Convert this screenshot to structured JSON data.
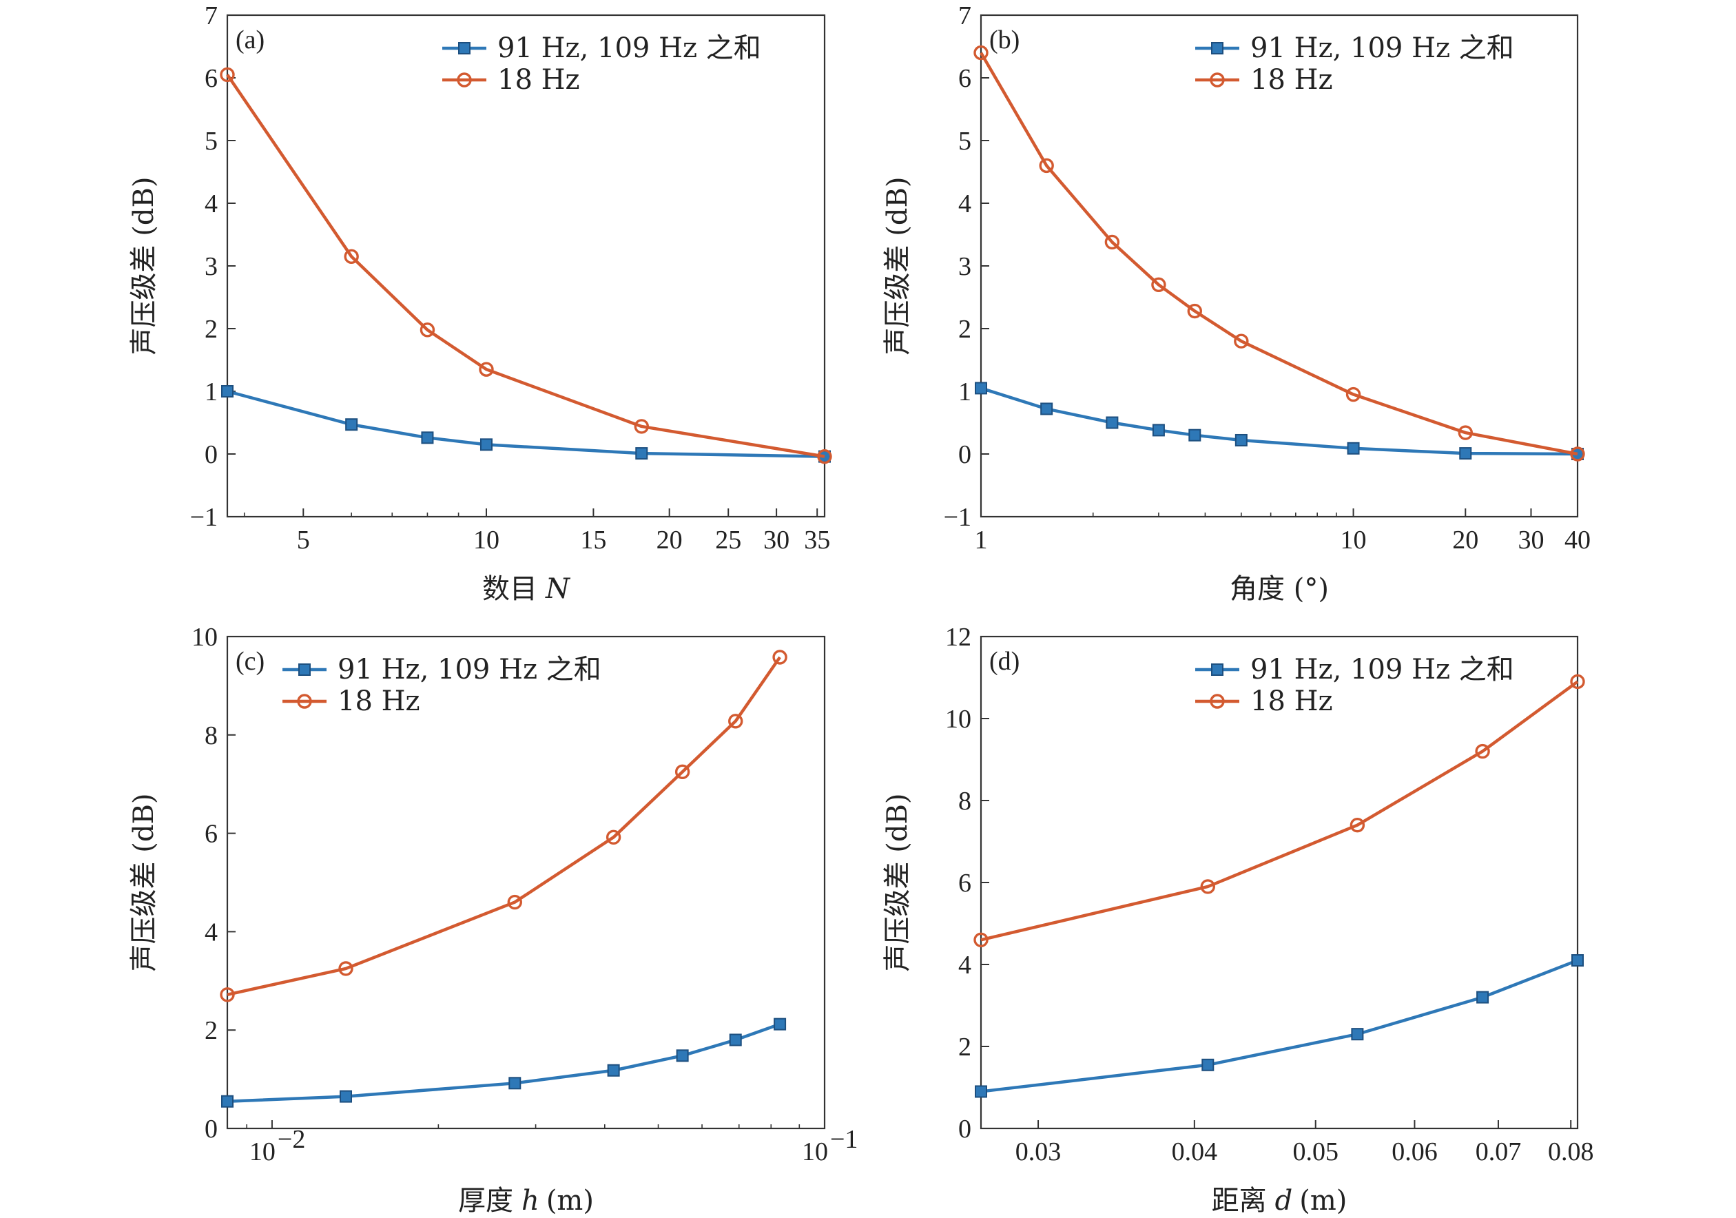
{
  "colors": {
    "series_a": "#2e78b7",
    "series_b": "#d35a30",
    "axis": "#333333"
  },
  "chart_data": [
    {
      "tag": "(a)",
      "type": "line",
      "xscale": "log",
      "xlabel": "数目",
      "xlabel_var": "N",
      "ylabel": "声压级差 (dB)",
      "xlim": [
        3.75,
        36
      ],
      "ylim": [
        -1,
        7
      ],
      "xticks": [
        5,
        10,
        15,
        20,
        25,
        30,
        35
      ],
      "xtick_labels": [
        "5",
        "10",
        "15",
        "20",
        "25",
        "30",
        "35"
      ],
      "yticks": [
        -1,
        0,
        1,
        2,
        3,
        4,
        5,
        6,
        7
      ],
      "ytick_labels": [
        "−1",
        "0",
        "1",
        "2",
        "3",
        "4",
        "5",
        "6",
        "7"
      ],
      "legend": "top-right",
      "series": [
        {
          "name": "91 Hz, 109 Hz 之和",
          "marker": "square",
          "x": [
            3.75,
            6,
            8,
            10,
            18,
            36
          ],
          "y": [
            1.0,
            0.47,
            0.26,
            0.15,
            0.01,
            -0.04
          ]
        },
        {
          "name": "18 Hz",
          "marker": "circle",
          "x": [
            3.75,
            6,
            8,
            10,
            18,
            36
          ],
          "y": [
            6.05,
            3.15,
            1.98,
            1.35,
            0.44,
            -0.04
          ]
        }
      ]
    },
    {
      "tag": "(b)",
      "type": "line",
      "xscale": "log",
      "xlabel": "角度 (°)",
      "xlabel_var": "",
      "ylabel": "声压级差 (dB)",
      "xlim": [
        1,
        40
      ],
      "ylim": [
        -1,
        7
      ],
      "xticks": [
        1,
        10,
        20,
        30,
        40
      ],
      "xtick_labels": [
        "1",
        "10",
        "20",
        "30",
        "40"
      ],
      "yticks": [
        -1,
        0,
        1,
        2,
        3,
        4,
        5,
        6,
        7
      ],
      "ytick_labels": [
        "−1",
        "0",
        "1",
        "2",
        "3",
        "4",
        "5",
        "6",
        "7"
      ],
      "legend": "top-right",
      "series": [
        {
          "name": "91 Hz, 109 Hz 之和",
          "marker": "square",
          "x": [
            1,
            1.5,
            2.25,
            3,
            3.75,
            5,
            10,
            20,
            40
          ],
          "y": [
            1.05,
            0.72,
            0.5,
            0.38,
            0.3,
            0.22,
            0.09,
            0.01,
            0.0
          ]
        },
        {
          "name": "18 Hz",
          "marker": "circle",
          "x": [
            1,
            1.5,
            2.25,
            3,
            3.75,
            5,
            10,
            20,
            40
          ],
          "y": [
            6.4,
            4.6,
            3.38,
            2.7,
            2.28,
            1.8,
            0.95,
            0.34,
            0.0
          ]
        }
      ]
    },
    {
      "tag": "(c)",
      "type": "line",
      "xscale": "log",
      "xlabel": "厚度",
      "xlabel_var": "h",
      "xlabel_unit": "(m)",
      "ylabel": "声压级差 (dB)",
      "xlim": [
        0.0083,
        0.1
      ],
      "ylim": [
        0,
        10
      ],
      "xticks": [
        0.01,
        0.1
      ],
      "xtick_labels": [
        "10",
        "10"
      ],
      "xtick_exponents": [
        "−2",
        "−1"
      ],
      "yticks": [
        0,
        2,
        4,
        6,
        8,
        10
      ],
      "ytick_labels": [
        "0",
        "2",
        "4",
        "6",
        "8",
        "10"
      ],
      "legend": "top-left",
      "series": [
        {
          "name": "91 Hz, 109 Hz 之和",
          "marker": "square",
          "x": [
            0.0083,
            0.0136,
            0.0275,
            0.0415,
            0.0553,
            0.069,
            0.083
          ],
          "y": [
            0.55,
            0.65,
            0.92,
            1.18,
            1.48,
            1.8,
            2.12
          ]
        },
        {
          "name": "18 Hz",
          "marker": "circle",
          "x": [
            0.0083,
            0.0136,
            0.0275,
            0.0415,
            0.0553,
            0.069,
            0.083
          ],
          "y": [
            2.72,
            3.25,
            4.6,
            5.92,
            7.25,
            8.28,
            9.58
          ]
        }
      ]
    },
    {
      "tag": "(d)",
      "type": "line",
      "xscale": "log",
      "xlabel": "距离",
      "xlabel_var": "d",
      "xlabel_unit": "(m)",
      "ylabel": "声压级差 (dB)",
      "xlim": [
        0.027,
        0.081
      ],
      "ylim": [
        0,
        12
      ],
      "xticks": [
        0.03,
        0.04,
        0.05,
        0.06,
        0.07,
        0.08
      ],
      "xtick_labels": [
        "0.03",
        "0.04",
        "0.05",
        "0.06",
        "0.07",
        "0.08"
      ],
      "yticks": [
        0,
        2,
        4,
        6,
        8,
        10,
        12
      ],
      "ytick_labels": [
        "0",
        "2",
        "4",
        "6",
        "8",
        "10",
        "12"
      ],
      "legend": "top-right",
      "series": [
        {
          "name": "91 Hz, 109 Hz 之和",
          "marker": "square",
          "x": [
            0.027,
            0.041,
            0.054,
            0.068,
            0.081
          ],
          "y": [
            0.9,
            1.55,
            2.3,
            3.2,
            4.1
          ]
        },
        {
          "name": "18 Hz",
          "marker": "circle",
          "x": [
            0.027,
            0.041,
            0.054,
            0.068,
            0.081
          ],
          "y": [
            4.6,
            5.9,
            7.4,
            9.2,
            10.9
          ]
        }
      ]
    }
  ]
}
